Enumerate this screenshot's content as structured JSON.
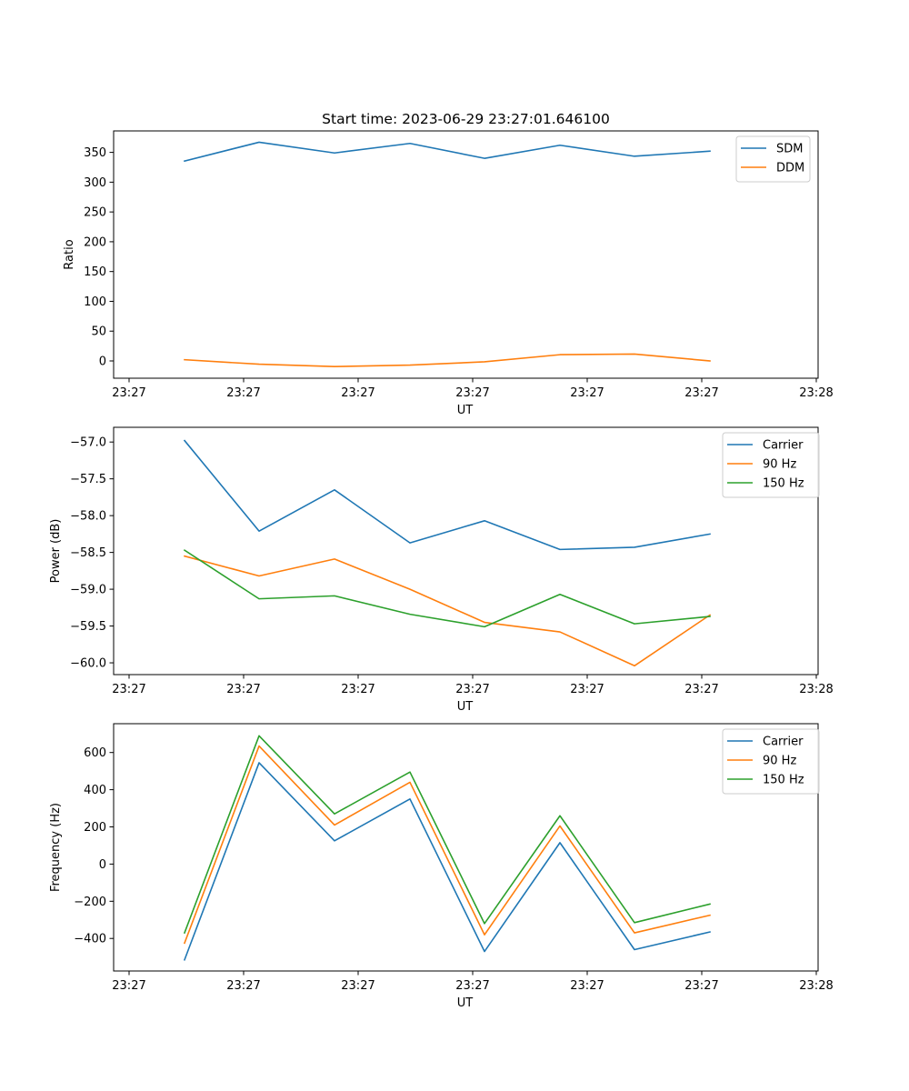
{
  "figure": {
    "title": "Start time: 2023-06-29 23:27:01.646100"
  },
  "chart_data": [
    {
      "type": "line",
      "xlabel": "UT",
      "ylabel": "Ratio",
      "xticks": [
        "23:27",
        "23:27",
        "23:27",
        "23:27",
        "23:27",
        "23:27",
        "23:28"
      ],
      "yticks": [
        "0",
        "50",
        "100",
        "150",
        "200",
        "250",
        "300",
        "350"
      ],
      "ylim": [
        -29,
        386
      ],
      "legend": "top-right",
      "grid": false,
      "series": [
        {
          "name": "SDM",
          "color": "#1f77b4",
          "values": [
            335.5,
            367,
            349,
            365,
            340,
            362,
            343.5,
            352
          ]
        },
        {
          "name": "DDM",
          "color": "#ff7f0e",
          "values": [
            2,
            -5.5,
            -9.5,
            -7,
            -1.5,
            10.5,
            11.5,
            0
          ]
        }
      ]
    },
    {
      "type": "line",
      "xlabel": "UT",
      "ylabel": "Power (dB)",
      "xticks": [
        "23:27",
        "23:27",
        "23:27",
        "23:27",
        "23:27",
        "23:27",
        "23:28"
      ],
      "yticks": [
        "−60.0",
        "−59.5",
        "−59.0",
        "−58.5",
        "−58.0",
        "−57.5",
        "−57.0"
      ],
      "ylim": [
        -60.16,
        -56.8
      ],
      "legend": "top-right",
      "grid": false,
      "series": [
        {
          "name": "Carrier",
          "color": "#1f77b4",
          "values": [
            -56.98,
            -58.21,
            -57.65,
            -58.37,
            -58.07,
            -58.46,
            -58.43,
            -58.25
          ]
        },
        {
          "name": "90 Hz",
          "color": "#ff7f0e",
          "values": [
            -58.55,
            -58.82,
            -58.59,
            -59.0,
            -59.45,
            -59.58,
            -60.04,
            -59.35
          ]
        },
        {
          "name": "150 Hz",
          "color": "#2ca02c",
          "values": [
            -58.47,
            -59.13,
            -59.09,
            -59.34,
            -59.51,
            -59.07,
            -59.47,
            -59.37
          ]
        }
      ]
    },
    {
      "type": "line",
      "xlabel": "UT",
      "ylabel": "Frequency (Hz)",
      "xticks": [
        "23:27",
        "23:27",
        "23:27",
        "23:27",
        "23:27",
        "23:27",
        "23:28"
      ],
      "yticks": [
        "−400",
        "−200",
        "0",
        "200",
        "400",
        "600"
      ],
      "ylim": [
        -575,
        755
      ],
      "legend": "top-right",
      "grid": false,
      "series": [
        {
          "name": "Carrier",
          "color": "#1f77b4",
          "values": [
            -515,
            545,
            125,
            350,
            -470,
            115,
            -460,
            -365
          ]
        },
        {
          "name": "90 Hz",
          "color": "#ff7f0e",
          "values": [
            -425,
            635,
            210,
            440,
            -380,
            205,
            -370,
            -275
          ]
        },
        {
          "name": "150 Hz",
          "color": "#2ca02c",
          "values": [
            -370,
            690,
            270,
            495,
            -320,
            260,
            -315,
            -215
          ]
        }
      ]
    }
  ]
}
